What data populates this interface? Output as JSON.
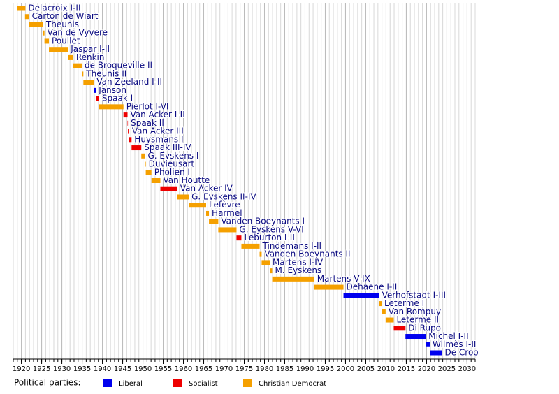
{
  "chart_data": {
    "type": "timeline",
    "xlim": [
      1918,
      2032
    ],
    "xticks": [
      1920,
      1925,
      1930,
      1935,
      1940,
      1945,
      1950,
      1955,
      1960,
      1965,
      1970,
      1975,
      1980,
      1985,
      1990,
      1995,
      2000,
      2005,
      2010,
      2015,
      2020,
      2025,
      2030
    ],
    "grid": true,
    "bars": [
      {
        "label": "Delacroix I-II",
        "start": 1918.9,
        "end": 1921.0,
        "color": "#f5a000"
      },
      {
        "label": "Carton de Wiart",
        "start": 1920.9,
        "end": 1921.9,
        "color": "#f5a000"
      },
      {
        "label": "Theunis",
        "start": 1921.9,
        "end": 1925.4,
        "color": "#f5a000"
      },
      {
        "label": "Van de Vyvere",
        "start": 1925.4,
        "end": 1925.7,
        "color": "#f5a000"
      },
      {
        "label": "Poullet",
        "start": 1925.7,
        "end": 1926.8,
        "color": "#f5a000"
      },
      {
        "label": "Jaspar I-II",
        "start": 1926.8,
        "end": 1931.5,
        "color": "#f5a000"
      },
      {
        "label": "Renkin",
        "start": 1931.5,
        "end": 1932.8,
        "color": "#f5a000"
      },
      {
        "label": "de Broqueville II",
        "start": 1932.8,
        "end": 1934.9,
        "color": "#f5a000"
      },
      {
        "label": "Theunis II",
        "start": 1934.9,
        "end": 1935.3,
        "color": "#f5a000"
      },
      {
        "label": "Van Zeeland I-II",
        "start": 1935.3,
        "end": 1937.9,
        "color": "#f5a000"
      },
      {
        "label": "Janson",
        "start": 1937.9,
        "end": 1938.4,
        "color": "#0000ee"
      },
      {
        "label": "Spaak I",
        "start": 1938.4,
        "end": 1939.2,
        "color": "#ee0000"
      },
      {
        "label": "Pierlot I-VI",
        "start": 1939.2,
        "end": 1945.2,
        "color": "#f5a000"
      },
      {
        "label": "Van Acker I-II",
        "start": 1945.2,
        "end": 1946.2,
        "color": "#ee0000"
      },
      {
        "label": "Spaak II",
        "start": 1946.2,
        "end": 1946.3,
        "color": "#ee0000"
      },
      {
        "label": "Van Acker III",
        "start": 1946.3,
        "end": 1946.6,
        "color": "#ee0000"
      },
      {
        "label": "Huysmans I",
        "start": 1946.6,
        "end": 1947.2,
        "color": "#ee0000"
      },
      {
        "label": "Spaak III-IV",
        "start": 1947.2,
        "end": 1949.6,
        "color": "#ee0000"
      },
      {
        "label": "G. Eyskens I",
        "start": 1949.6,
        "end": 1950.5,
        "color": "#f5a000"
      },
      {
        "label": "Duvieusart",
        "start": 1950.5,
        "end": 1950.7,
        "color": "#f5a000"
      },
      {
        "label": "Pholien I",
        "start": 1950.7,
        "end": 1952.1,
        "color": "#f5a000"
      },
      {
        "label": "Van Houtte",
        "start": 1952.1,
        "end": 1954.3,
        "color": "#f5a000"
      },
      {
        "label": "Van Acker IV",
        "start": 1954.3,
        "end": 1958.5,
        "color": "#ee0000"
      },
      {
        "label": "G. Eyskens II-IV",
        "start": 1958.5,
        "end": 1961.3,
        "color": "#f5a000"
      },
      {
        "label": "Lefèvre",
        "start": 1961.3,
        "end": 1965.6,
        "color": "#f5a000"
      },
      {
        "label": "Harmel",
        "start": 1965.6,
        "end": 1966.3,
        "color": "#f5a000"
      },
      {
        "label": "Vanden Boeynants I",
        "start": 1966.3,
        "end": 1968.6,
        "color": "#f5a000"
      },
      {
        "label": "G. Eyskens V-VI",
        "start": 1968.6,
        "end": 1973.1,
        "color": "#f5a000"
      },
      {
        "label": "Leburton I-II",
        "start": 1973.1,
        "end": 1974.3,
        "color": "#ee0000"
      },
      {
        "label": "Tindemans I-II",
        "start": 1974.3,
        "end": 1978.8,
        "color": "#f5a000"
      },
      {
        "label": "Vanden Boeynants II",
        "start": 1978.8,
        "end": 1979.3,
        "color": "#f5a000"
      },
      {
        "label": "Martens I-IV",
        "start": 1979.3,
        "end": 1981.3,
        "color": "#f5a000"
      },
      {
        "label": "M. Eyskens",
        "start": 1981.3,
        "end": 1981.9,
        "color": "#f5a000"
      },
      {
        "label": "Martens V-IX",
        "start": 1981.9,
        "end": 1992.3,
        "color": "#f5a000"
      },
      {
        "label": "Dehaene I-II",
        "start": 1992.3,
        "end": 1999.5,
        "color": "#f5a000"
      },
      {
        "label": "Verhofstadt I-III",
        "start": 1999.5,
        "end": 2008.3,
        "color": "#0000ee"
      },
      {
        "label": "Leterme I",
        "start": 2008.3,
        "end": 2008.9,
        "color": "#f5a000"
      },
      {
        "label": "Van Rompuy",
        "start": 2008.9,
        "end": 2009.9,
        "color": "#f5a000"
      },
      {
        "label": "Leterme II",
        "start": 2009.9,
        "end": 2011.9,
        "color": "#f5a000"
      },
      {
        "label": "Di Rupo",
        "start": 2011.9,
        "end": 2014.8,
        "color": "#ee0000"
      },
      {
        "label": "Michel I-II",
        "start": 2014.8,
        "end": 2019.8,
        "color": "#0000ee"
      },
      {
        "label": "Wilmès I-II",
        "start": 2019.8,
        "end": 2020.8,
        "color": "#0000ee"
      },
      {
        "label": "De Croo",
        "start": 2020.8,
        "end": 2023.8,
        "color": "#0000ee"
      }
    ],
    "legend_title": "Political parties:",
    "legend": [
      {
        "name": "Liberal",
        "color": "#0000ee"
      },
      {
        "name": "Socialist",
        "color": "#ee0000"
      },
      {
        "name": "Christian Democrat",
        "color": "#f5a000"
      }
    ]
  }
}
